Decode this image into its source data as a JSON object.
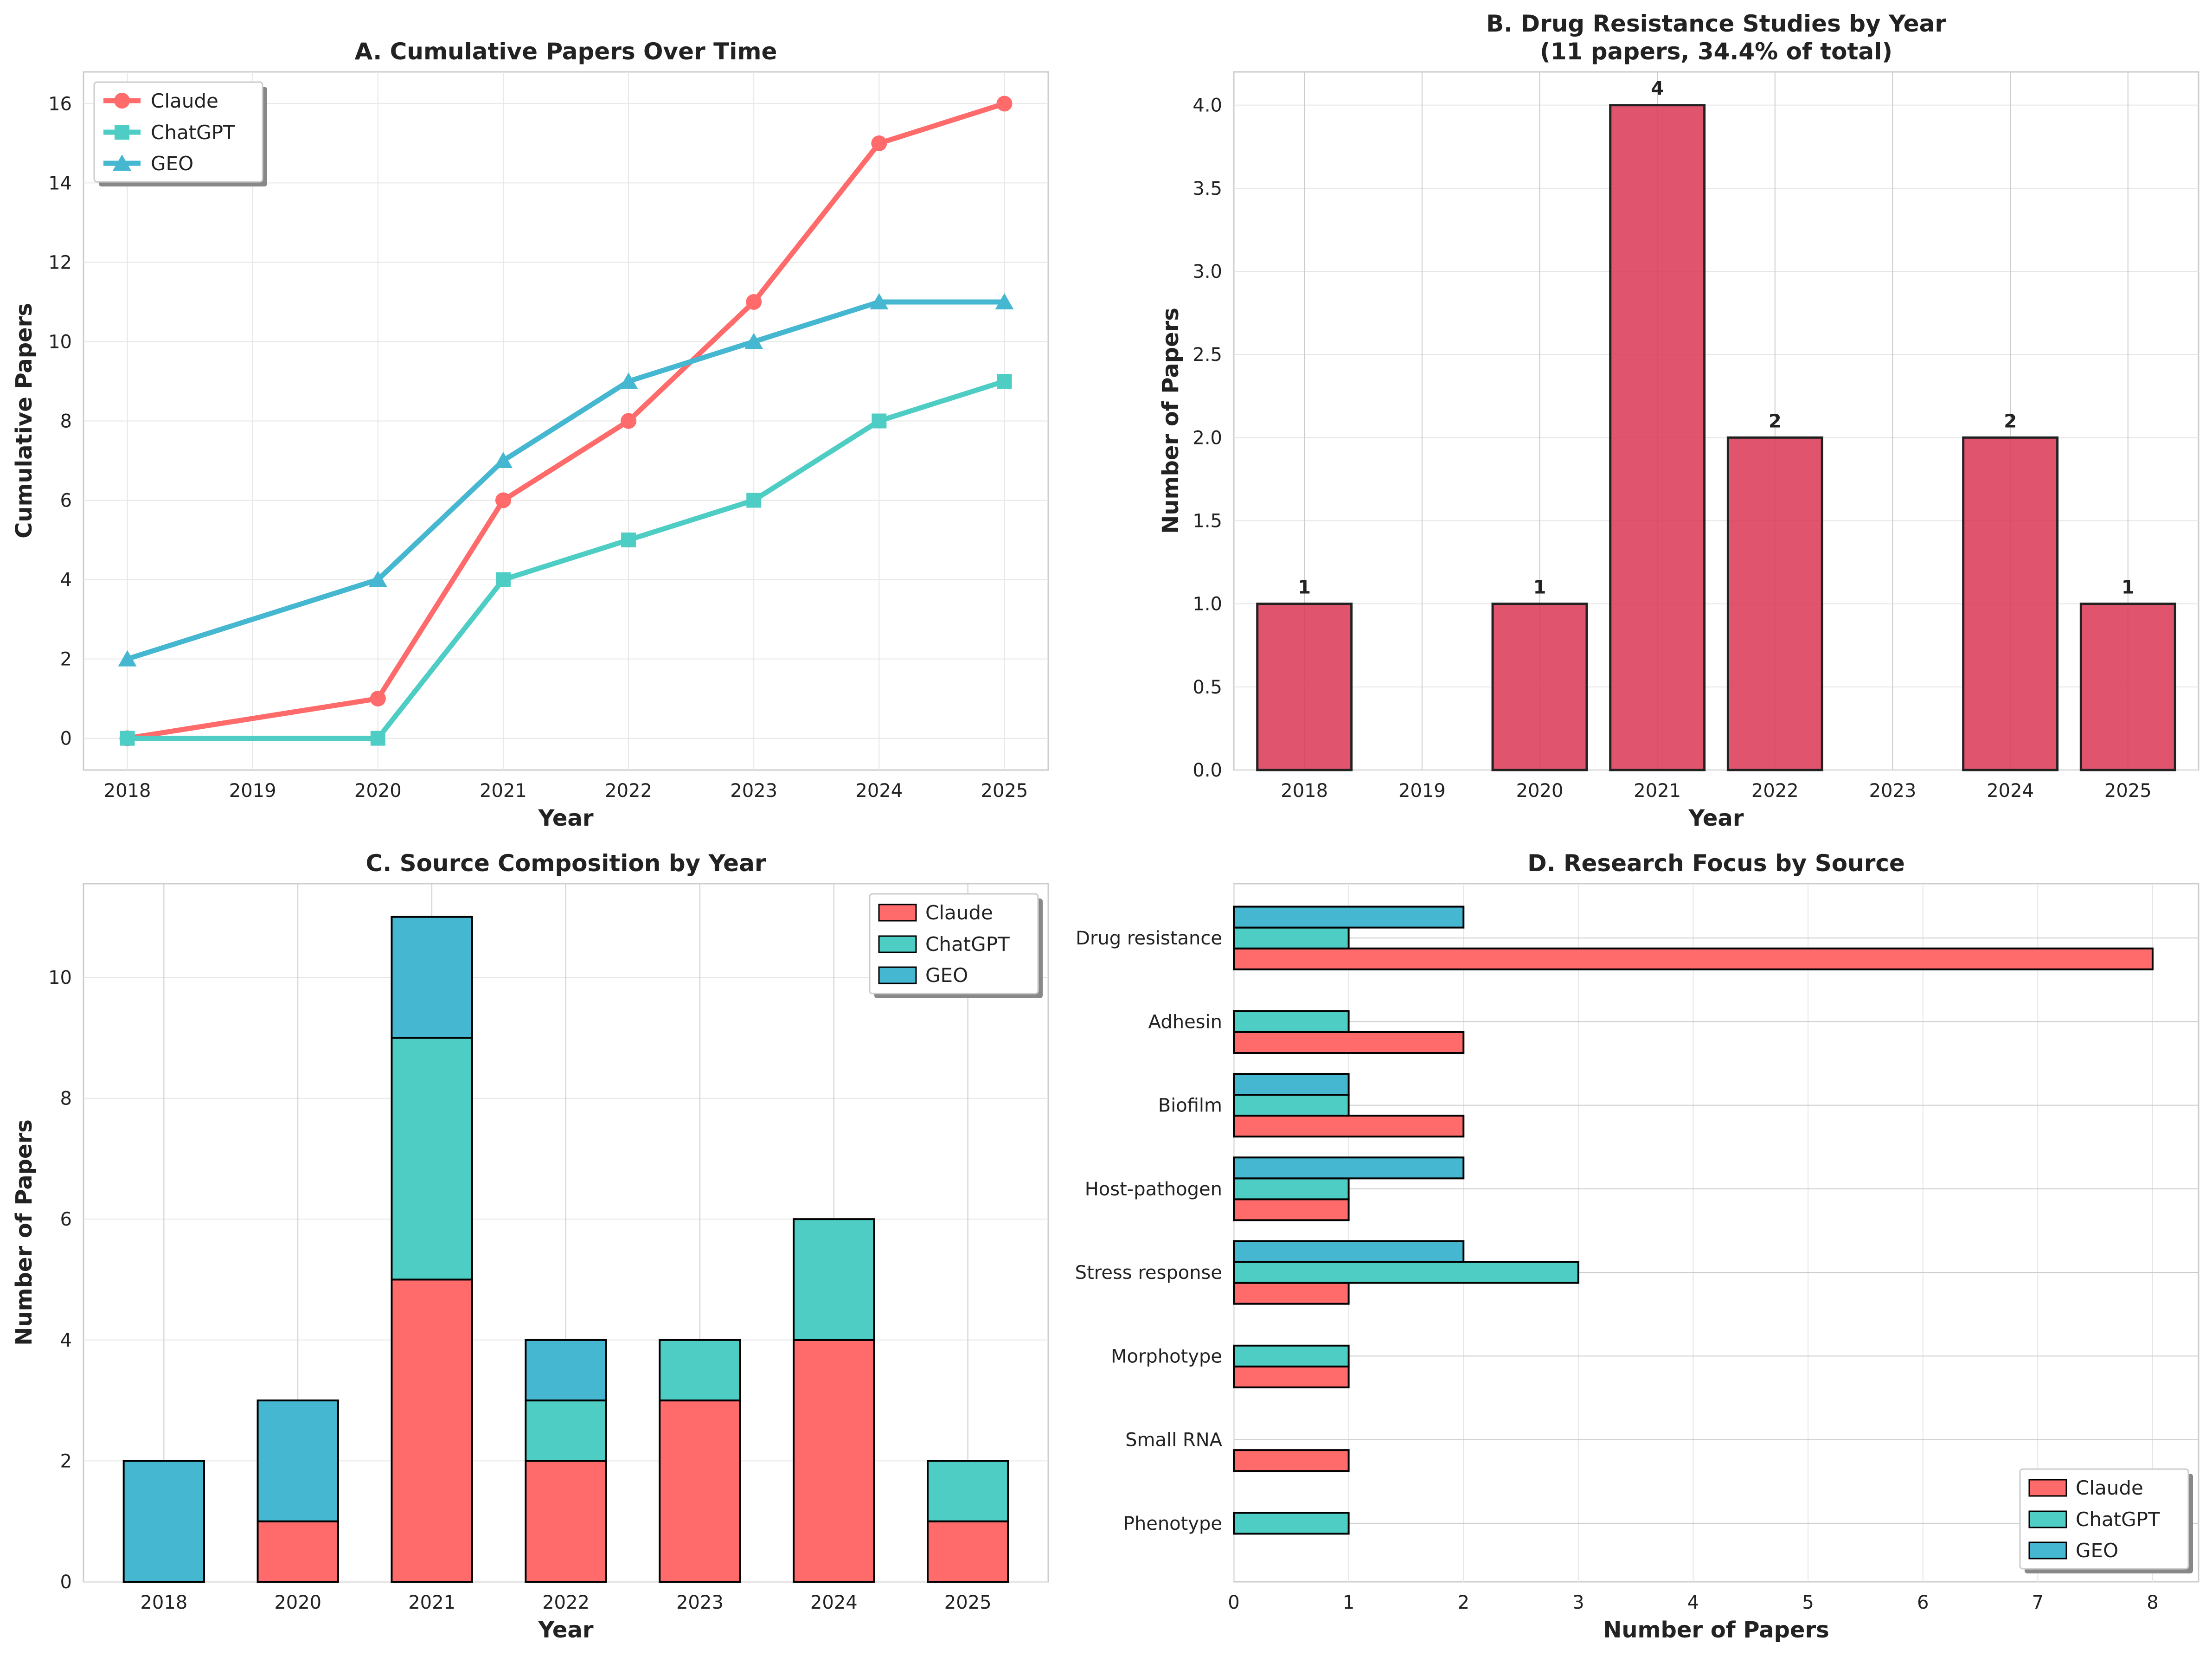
{
  "colors": {
    "Claude": "#ff6b6b",
    "ChatGPT": "#4ecdc4",
    "GEO": "#45b7d1",
    "drug_bar": "#dc3c5a"
  },
  "chart_data": [
    {
      "id": "A",
      "type": "line",
      "title": "A. Cumulative Papers Over Time",
      "xlabel": "Year",
      "ylabel": "Cumulative Papers",
      "xlim": [
        2017.65,
        2025.35
      ],
      "ylim": [
        -0.8,
        16.8
      ],
      "xticks": [
        2018,
        2019,
        2020,
        2021,
        2022,
        2023,
        2024,
        2025
      ],
      "yticks": [
        0,
        2,
        4,
        6,
        8,
        10,
        12,
        14,
        16
      ],
      "x": [
        2018,
        2020,
        2021,
        2022,
        2023,
        2024,
        2025
      ],
      "series": [
        {
          "name": "Claude",
          "marker": "circle",
          "values": [
            0,
            1,
            6,
            8,
            11,
            15,
            16
          ]
        },
        {
          "name": "ChatGPT",
          "marker": "square",
          "values": [
            0,
            0,
            4,
            5,
            6,
            8,
            9
          ]
        },
        {
          "name": "GEO",
          "marker": "triangle",
          "values": [
            2,
            4,
            7,
            9,
            10,
            11,
            11
          ]
        }
      ],
      "legend": "top-left",
      "grid": true
    },
    {
      "id": "B",
      "type": "bar",
      "title_line1": "B. Drug Resistance Studies by Year",
      "title_line2": "(11 papers, 34.4% of total)",
      "xlabel": "Year",
      "ylabel": "Number of Papers",
      "ylim": [
        0,
        4.2
      ],
      "yticks": [
        "0.0",
        "0.5",
        "1.0",
        "1.5",
        "2.0",
        "2.5",
        "3.0",
        "3.5",
        "4.0"
      ],
      "categories": [
        "2018",
        "2019",
        "2020",
        "2021",
        "2022",
        "2023",
        "2024",
        "2025"
      ],
      "values": [
        1,
        0,
        1,
        4,
        2,
        0,
        2,
        1
      ],
      "grid": true
    },
    {
      "id": "C",
      "type": "bar",
      "stacked": true,
      "title": "C. Source Composition by Year",
      "xlabel": "Year",
      "ylabel": "Number of Papers",
      "ylim": [
        0,
        11.55
      ],
      "yticks": [
        0,
        2,
        4,
        6,
        8,
        10
      ],
      "categories": [
        "2018",
        "2020",
        "2021",
        "2022",
        "2023",
        "2024",
        "2025"
      ],
      "series": [
        {
          "name": "Claude",
          "values": [
            0,
            1,
            5,
            2,
            3,
            4,
            1
          ]
        },
        {
          "name": "ChatGPT",
          "values": [
            0,
            0,
            4,
            1,
            1,
            2,
            1
          ]
        },
        {
          "name": "GEO",
          "values": [
            2,
            2,
            2,
            1,
            0,
            0,
            0
          ]
        }
      ],
      "legend": "top-right",
      "grid": true
    },
    {
      "id": "D",
      "type": "bar",
      "orientation": "horizontal",
      "title": "D. Research Focus by Source",
      "xlabel": "Number of Papers",
      "xlim": [
        0,
        8.4
      ],
      "xticks": [
        0,
        1,
        2,
        3,
        4,
        5,
        6,
        7,
        8
      ],
      "categories": [
        "Drug resistance",
        "Adhesin",
        "Biofilm",
        "Host-pathogen",
        "Stress response",
        "Morphotype",
        "Small RNA",
        "Phenotype"
      ],
      "series": [
        {
          "name": "Claude",
          "values": [
            8,
            2,
            2,
            1,
            1,
            1,
            1,
            0
          ]
        },
        {
          "name": "ChatGPT",
          "values": [
            1,
            1,
            1,
            1,
            3,
            1,
            0,
            1
          ]
        },
        {
          "name": "GEO",
          "values": [
            2,
            0,
            1,
            2,
            2,
            0,
            0,
            0
          ]
        }
      ],
      "legend": "bottom-right",
      "grid": true
    }
  ]
}
